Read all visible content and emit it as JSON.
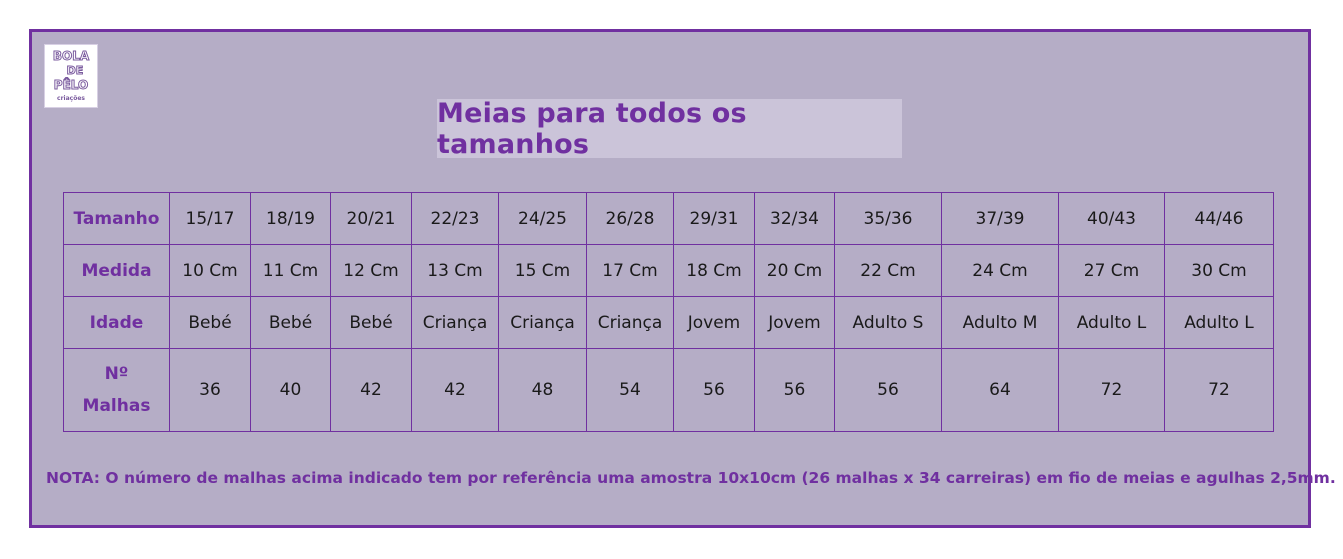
{
  "logo": {
    "line1": "BOLA",
    "line2": "DE",
    "line3": "PÊLO",
    "line4": "criações"
  },
  "title": "Meias para todos os tamanhos",
  "table": {
    "rows": [
      {
        "label": "Tamanho",
        "cells": [
          "15/17",
          "18/19",
          "20/21",
          "22/23",
          "24/25",
          "26/28",
          "29/31",
          "32/34",
          "35/36",
          "37/39",
          "40/43",
          "44/46"
        ]
      },
      {
        "label": "Medida",
        "cells": [
          "10 Cm",
          "11 Cm",
          "12 Cm",
          "13 Cm",
          "15 Cm",
          "17 Cm",
          "18 Cm",
          "20 Cm",
          "22 Cm",
          "24 Cm",
          "27 Cm",
          "30 Cm"
        ]
      },
      {
        "label": "Idade",
        "cells": [
          "Bebé",
          "Bebé",
          "Bebé",
          "Criança",
          "Criança",
          "Criança",
          "Jovem",
          "Jovem",
          "Adulto S",
          "Adulto M",
          "Adulto L",
          "Adulto L"
        ]
      },
      {
        "label_line1": "Nº",
        "label_line2": "Malhas",
        "cells": [
          "36",
          "40",
          "42",
          "42",
          "48",
          "54",
          "56",
          "56",
          "56",
          "64",
          "72",
          "72"
        ]
      }
    ]
  },
  "note": "NOTA: O número de malhas acima indicado tem por referência uma amostra 10x10cm (26 malhas x 34 carreiras) em fio de meias e agulhas 2,5mm.",
  "colors": {
    "panel_background": "#b5adc6",
    "accent_purple": "#7030a0",
    "title_box": "#cbc4d9"
  }
}
